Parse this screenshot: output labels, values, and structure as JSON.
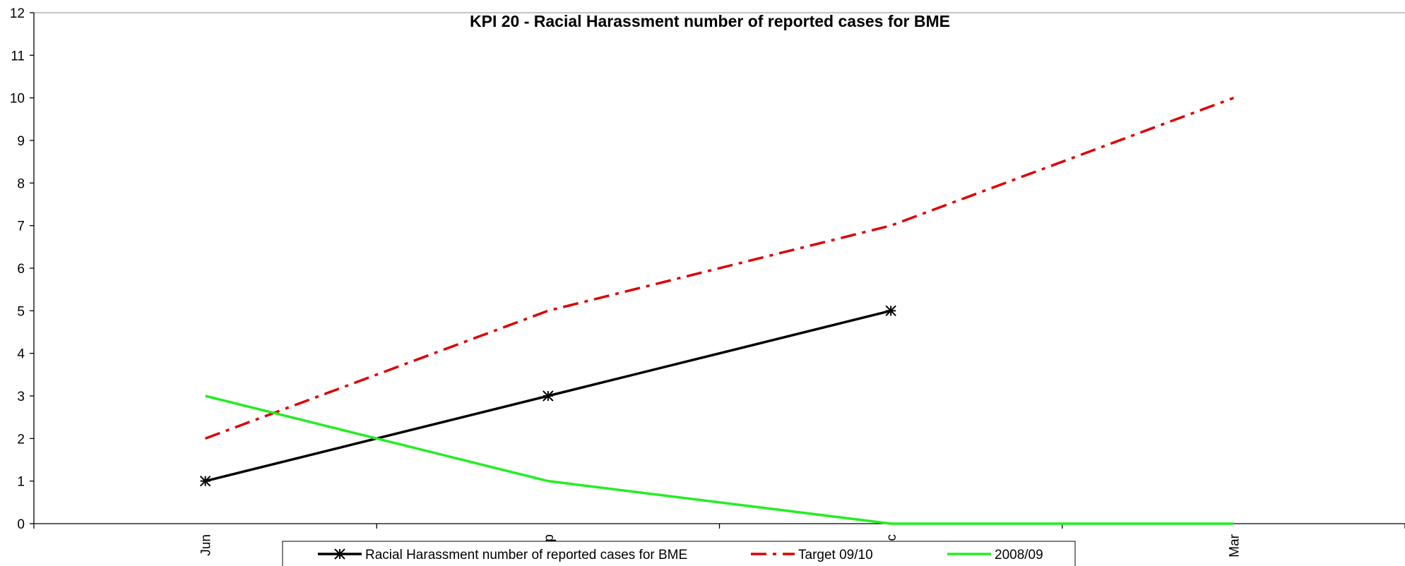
{
  "chart_data": {
    "type": "line",
    "title": "KPI 20 - Racial Harassment number of reported cases for BME",
    "categories": [
      "Jun",
      "Sep",
      "Dec",
      "Mar"
    ],
    "series": [
      {
        "name": "Racial Harassment number of reported cases for BME",
        "color": "#000000",
        "dash": "solid",
        "marker": "star",
        "values": [
          1,
          3,
          5,
          null
        ]
      },
      {
        "name": "Target 09/10",
        "color": "#dd0000",
        "dash": "dashdot",
        "marker": "none",
        "values": [
          2,
          5,
          7,
          10
        ]
      },
      {
        "name": "2008/09",
        "color": "#22ee22",
        "dash": "solid",
        "marker": "none",
        "values": [
          3,
          1,
          0,
          0
        ]
      }
    ],
    "ylim": [
      0,
      12
    ],
    "yticks": [
      0,
      1,
      2,
      3,
      4,
      5,
      6,
      7,
      8,
      9,
      10,
      11,
      12
    ],
    "grid": false,
    "legend": "bottom"
  }
}
